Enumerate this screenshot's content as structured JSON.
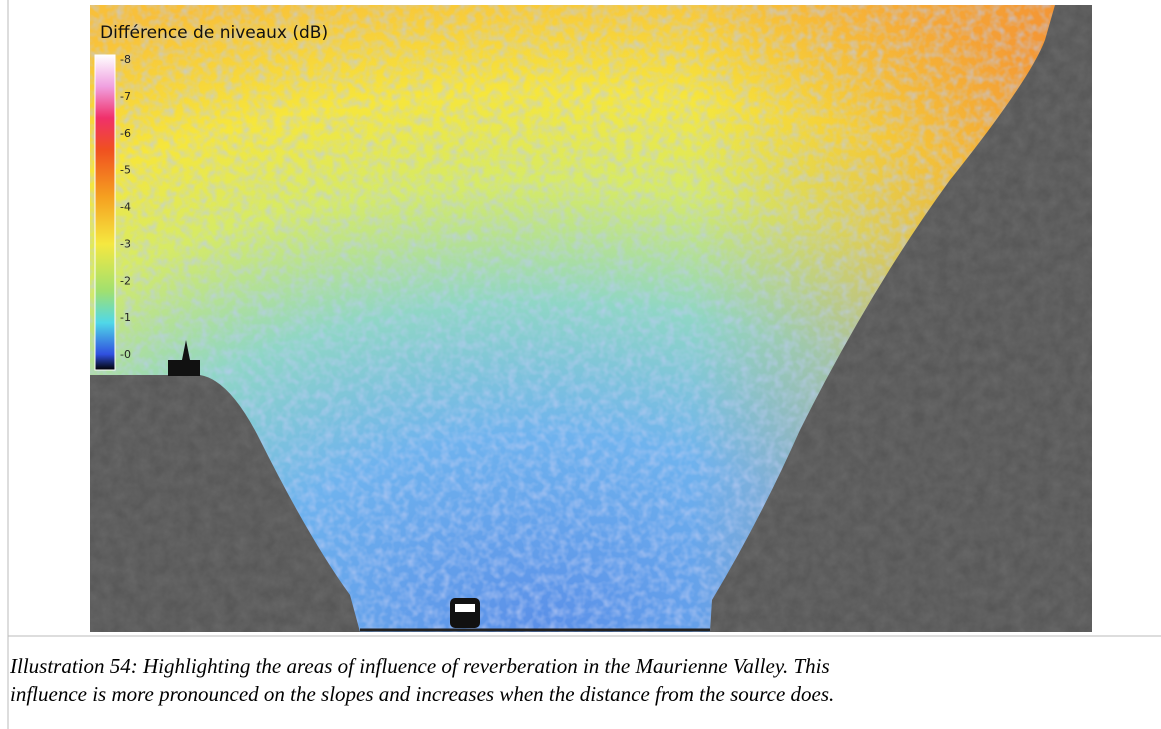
{
  "figure": {
    "legend": {
      "title": "Différence de niveaux (dB)",
      "ticks": [
        "-8",
        "-7",
        "-6",
        "-5",
        "-4",
        "-3",
        "-2",
        "-1",
        "-0"
      ]
    },
    "caption": [
      "Illustration 54: Highlighting the areas of influence of reverberation in the Maurienne Valley. This",
      "influence is more pronounced on the slopes and increases when the distance from the source does."
    ]
  }
}
